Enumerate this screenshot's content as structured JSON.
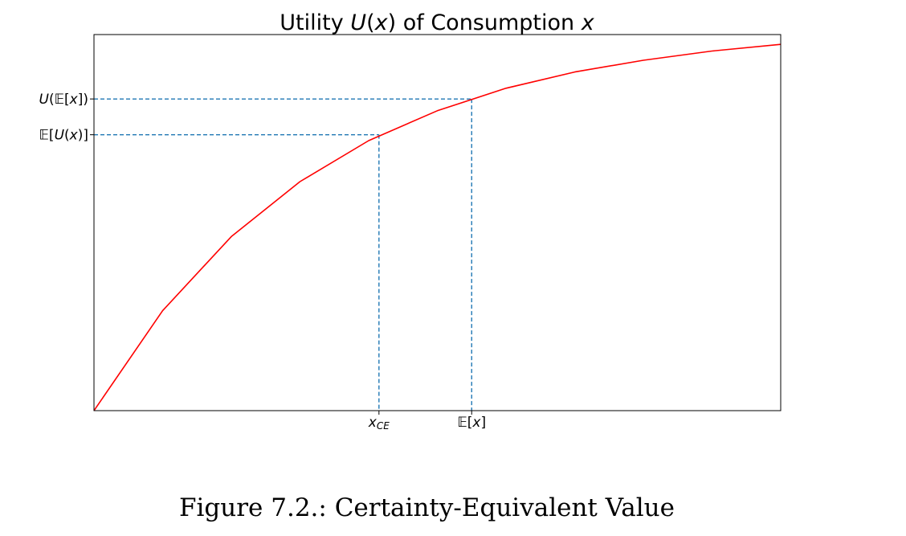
{
  "caption": "Figure 7.2.: Certainty-Equivalent Value",
  "chart_data": {
    "type": "line",
    "title": {
      "parts": [
        {
          "text": "Utility ",
          "italic": false
        },
        {
          "text": "U",
          "italic": true
        },
        {
          "text": "(",
          "italic": false
        },
        {
          "text": "x",
          "italic": true
        },
        {
          "text": ") of Consumption ",
          "italic": false
        },
        {
          "text": "x",
          "italic": true
        }
      ]
    },
    "xlabel": "",
    "ylabel": "",
    "xlim": [
      0,
      10
    ],
    "ylim": [
      0,
      1.0
    ],
    "grid": false,
    "series": [
      {
        "color": "#ff0000",
        "x": [
          0,
          1,
          2,
          3,
          4,
          5,
          6,
          7,
          8,
          9,
          10
        ],
        "y": [
          0,
          0.271,
          0.472,
          0.621,
          0.732,
          0.813,
          0.874,
          0.918,
          0.95,
          0.975,
          0.993
        ]
      }
    ],
    "reference_lines": {
      "color": "#1f77b4",
      "style": "dashed",
      "points": [
        {
          "name": "certainty-equivalent",
          "x": 4.15,
          "y": 0.748
        },
        {
          "name": "expected-value",
          "x": 5.5,
          "y": 0.845
        }
      ]
    },
    "xticks": [
      {
        "value": 4.15,
        "label": {
          "parts": [
            {
              "text": "x",
              "italic": true
            },
            {
              "text": "CE",
              "italic": true,
              "sub": true
            }
          ]
        }
      },
      {
        "value": 5.5,
        "label": {
          "parts": [
            {
              "text": "𝔼[",
              "italic": false
            },
            {
              "text": "x",
              "italic": true
            },
            {
              "text": "]",
              "italic": false
            }
          ]
        }
      }
    ],
    "yticks": [
      {
        "value": 0.845,
        "label": {
          "parts": [
            {
              "text": "U",
              "italic": true
            },
            {
              "text": "(𝔼[",
              "italic": false
            },
            {
              "text": "x",
              "italic": true
            },
            {
              "text": "])",
              "italic": false
            }
          ]
        }
      },
      {
        "value": 0.748,
        "label": {
          "parts": [
            {
              "text": "𝔼[",
              "italic": false
            },
            {
              "text": "U",
              "italic": true
            },
            {
              "text": "(",
              "italic": false
            },
            {
              "text": "x",
              "italic": true
            },
            {
              "text": ")]",
              "italic": false
            }
          ]
        }
      }
    ]
  }
}
